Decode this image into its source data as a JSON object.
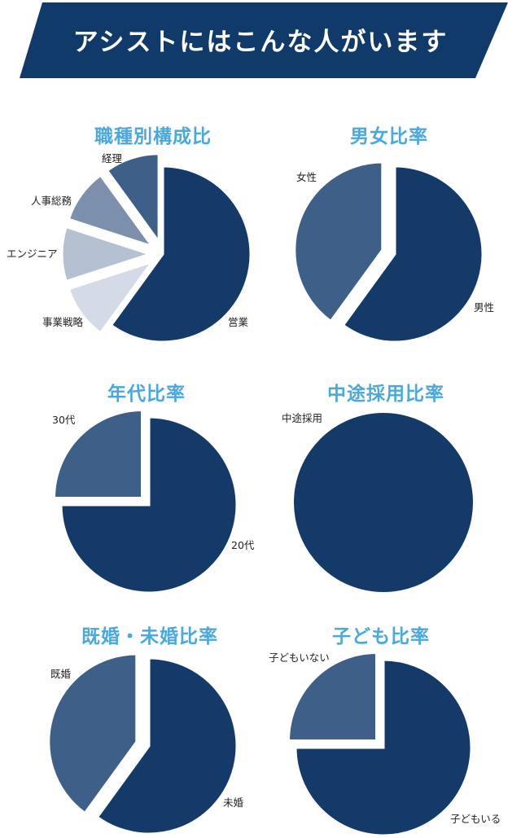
{
  "header": {
    "title": "アシストにはこんな人がいます",
    "color": "#0f3a6a"
  },
  "colors": {
    "title": "#4aa8dd",
    "label": "#222222",
    "background": "#ffffff"
  },
  "chart_data": [
    {
      "type": "pie",
      "title": "職種別構成比",
      "slices": [
        {
          "label": "営業",
          "value": 60,
          "color": "#143a69"
        },
        {
          "label": "事業戦略",
          "value": 10,
          "color": "#d4dbe6"
        },
        {
          "label": "エンジニア",
          "value": 10,
          "color": "#b4c1d3"
        },
        {
          "label": "人事総務",
          "value": 10,
          "color": "#7c90ad"
        },
        {
          "label": "経理",
          "value": 10,
          "color": "#3e5f87"
        }
      ]
    },
    {
      "type": "pie",
      "title": "男女比率",
      "slices": [
        {
          "label": "男性",
          "value": 60,
          "color": "#143a69"
        },
        {
          "label": "女性",
          "value": 40,
          "color": "#3e5f87"
        }
      ]
    },
    {
      "type": "pie",
      "title": "年代比率",
      "slices": [
        {
          "label": "20代",
          "value": 75,
          "color": "#143a69"
        },
        {
          "label": "30代",
          "value": 25,
          "color": "#3e5f87"
        }
      ]
    },
    {
      "type": "pie",
      "title": "中途採用比率",
      "slices": [
        {
          "label": "中途採用",
          "value": 100,
          "color": "#143a69"
        }
      ]
    },
    {
      "type": "pie",
      "title": "既婚・未婚比率",
      "slices": [
        {
          "label": "未婚",
          "value": 60,
          "color": "#143a69"
        },
        {
          "label": "既婚",
          "value": 40,
          "color": "#3e5f87"
        }
      ]
    },
    {
      "type": "pie",
      "title": "子ども比率",
      "slices": [
        {
          "label": "子どもいる",
          "value": 75,
          "color": "#143a69"
        },
        {
          "label": "子どもいない",
          "value": 25,
          "color": "#3e5f87"
        }
      ]
    }
  ]
}
